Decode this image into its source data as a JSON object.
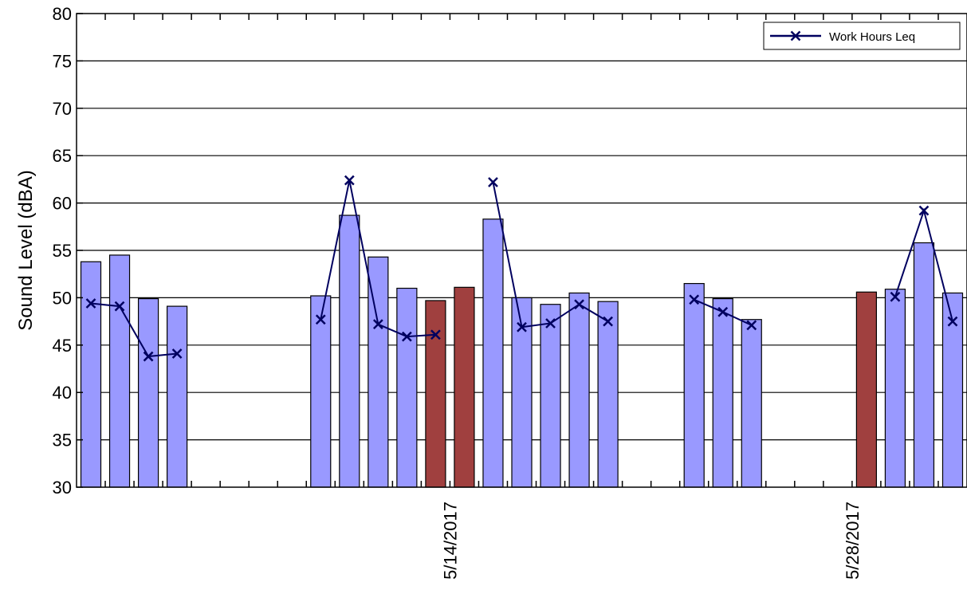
{
  "chart_data": {
    "type": "bar",
    "ylabel": "Sound Level (dBA)",
    "xlabel": "",
    "ylim": [
      30,
      80
    ],
    "yticks": [
      30,
      35,
      40,
      45,
      50,
      55,
      60,
      65,
      70,
      75,
      80
    ],
    "grid": true,
    "legend_position": "top-right",
    "x_tick_labels": [
      {
        "date_index": 13,
        "label": "5/14/2017"
      },
      {
        "date_index": 27,
        "label": "5/28/2017"
      }
    ],
    "colors": {
      "weekday_bar": "#9999ff",
      "weekend_bar": "#a0403f",
      "line": "#00005f"
    },
    "bars": [
      {
        "i": 0,
        "value": 53.8,
        "kind": "weekday"
      },
      {
        "i": 1,
        "value": 54.5,
        "kind": "weekday"
      },
      {
        "i": 2,
        "value": 49.9,
        "kind": "weekday"
      },
      {
        "i": 3,
        "value": 49.1,
        "kind": "weekday"
      },
      {
        "i": 8,
        "value": 50.2,
        "kind": "weekday"
      },
      {
        "i": 9,
        "value": 58.7,
        "kind": "weekday"
      },
      {
        "i": 10,
        "value": 54.3,
        "kind": "weekday"
      },
      {
        "i": 11,
        "value": 51.0,
        "kind": "weekday"
      },
      {
        "i": 12,
        "value": 49.7,
        "kind": "weekend"
      },
      {
        "i": 13,
        "value": 51.1,
        "kind": "weekend"
      },
      {
        "i": 14,
        "value": 58.3,
        "kind": "weekday"
      },
      {
        "i": 15,
        "value": 50.0,
        "kind": "weekday"
      },
      {
        "i": 16,
        "value": 49.3,
        "kind": "weekday"
      },
      {
        "i": 17,
        "value": 50.5,
        "kind": "weekday"
      },
      {
        "i": 18,
        "value": 49.6,
        "kind": "weekday"
      },
      {
        "i": 21,
        "value": 51.5,
        "kind": "weekday"
      },
      {
        "i": 22,
        "value": 49.9,
        "kind": "weekday"
      },
      {
        "i": 23,
        "value": 47.7,
        "kind": "weekday"
      },
      {
        "i": 27,
        "value": 50.6,
        "kind": "weekend"
      },
      {
        "i": 28,
        "value": 50.9,
        "kind": "weekday"
      },
      {
        "i": 29,
        "value": 55.8,
        "kind": "weekday"
      },
      {
        "i": 30,
        "value": 50.5,
        "kind": "weekday"
      }
    ],
    "series": [
      {
        "name": "Work Hours Leq",
        "segments": [
          [
            [
              0,
              49.4
            ],
            [
              1,
              49.1
            ],
            [
              2,
              43.8
            ],
            [
              3,
              44.1
            ]
          ],
          [
            [
              8,
              47.7
            ],
            [
              9,
              62.4
            ],
            [
              10,
              47.2
            ],
            [
              11,
              45.9
            ],
            [
              12,
              46.1
            ]
          ],
          [
            [
              14,
              62.2
            ],
            [
              15,
              46.9
            ],
            [
              16,
              47.3
            ],
            [
              17,
              49.3
            ],
            [
              18,
              47.5
            ]
          ],
          [
            [
              21,
              49.8
            ],
            [
              22,
              48.5
            ],
            [
              23,
              47.1
            ]
          ],
          [
            [
              28,
              50.1
            ],
            [
              29,
              59.2
            ],
            [
              30,
              47.5
            ]
          ]
        ]
      }
    ]
  }
}
